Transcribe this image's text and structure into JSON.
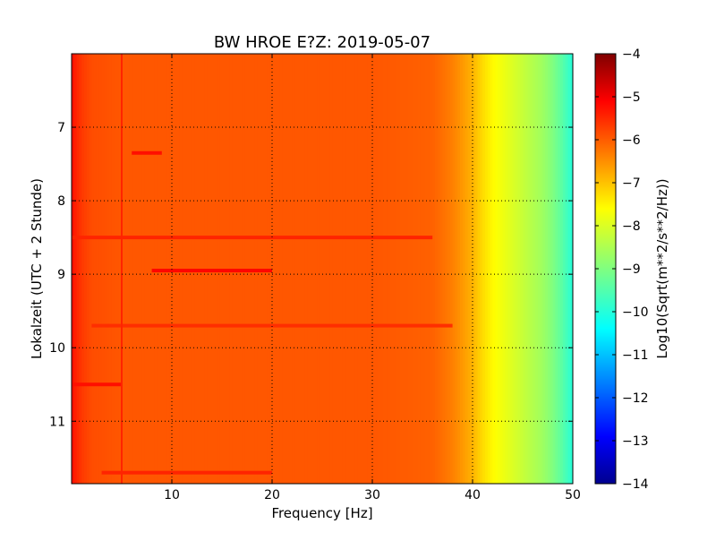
{
  "chart_data": {
    "type": "heatmap",
    "title": "BW HROE E?Z: 2019-05-07",
    "xlabel": "Frequency [Hz]",
    "ylabel": "Lokalzeit (UTC + 2 Stunde)",
    "colorbar_label": "Log10(Sqrt(m**2/s**2/Hz))",
    "xlim": [
      0,
      50
    ],
    "ylim": [
      6.0,
      11.85
    ],
    "y_inverted": true,
    "x_ticks": [
      10,
      20,
      30,
      40,
      50
    ],
    "x_tick_labels": [
      "10",
      "20",
      "30",
      "40",
      "50"
    ],
    "y_ticks": [
      7,
      8,
      9,
      10,
      11
    ],
    "y_tick_labels": [
      "7",
      "8",
      "9",
      "10",
      "11"
    ],
    "color_range": [
      -14,
      -4
    ],
    "colorbar_ticks": [
      -4,
      -5,
      -6,
      -7,
      -8,
      -9,
      -10,
      -11,
      -12,
      -13,
      -14
    ],
    "colorbar_tick_labels": [
      "−4",
      "−5",
      "−6",
      "−7",
      "−8",
      "−9",
      "−10",
      "−11",
      "−12",
      "−13",
      "−14"
    ],
    "colormap": "jet",
    "grid": true,
    "spectral_profile": {
      "frequency": [
        0,
        1,
        2,
        5,
        10,
        20,
        30,
        36,
        38,
        40,
        41,
        42,
        43,
        44,
        45,
        46,
        47,
        48,
        49,
        50
      ],
      "level": [
        -5.4,
        -5.8,
        -6.0,
        -6.1,
        -6.1,
        -6.1,
        -6.1,
        -6.2,
        -6.5,
        -7.0,
        -7.4,
        -7.7,
        -7.9,
        -8.1,
        -8.3,
        -8.5,
        -8.7,
        -9.0,
        -9.4,
        -9.9
      ]
    },
    "strong_bands": [
      {
        "time": 7.35,
        "freq_range": [
          6,
          9
        ],
        "level": -5.4
      },
      {
        "time": 8.5,
        "freq_range": [
          0,
          36
        ],
        "level": -5.6
      },
      {
        "time": 8.95,
        "freq_range": [
          8,
          20
        ],
        "level": -5.3
      },
      {
        "time": 9.7,
        "freq_range": [
          2,
          38
        ],
        "level": -5.7
      },
      {
        "time": 10.5,
        "freq_range": [
          0,
          5
        ],
        "level": -5.4
      },
      {
        "time": 11.7,
        "freq_range": [
          3,
          20
        ],
        "level": -5.6
      }
    ],
    "vertical_line": {
      "frequency": 5,
      "level": -5.6
    }
  }
}
